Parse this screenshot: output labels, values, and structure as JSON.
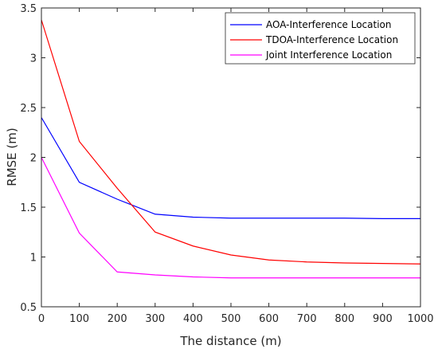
{
  "chart_data": {
    "type": "line",
    "xlabel": "The distance (m)",
    "ylabel": "RMSE (m)",
    "xlim": [
      0,
      1000
    ],
    "ylim": [
      0.5,
      3.5
    ],
    "xticks": [
      0,
      100,
      200,
      300,
      400,
      500,
      600,
      700,
      800,
      900,
      1000
    ],
    "yticks": [
      0.5,
      1,
      1.5,
      2,
      2.5,
      3,
      3.5
    ],
    "xtick_labels": [
      "0",
      "100",
      "200",
      "300",
      "400",
      "500",
      "600",
      "700",
      "800",
      "900",
      "1000"
    ],
    "ytick_labels": [
      "0.5",
      "1",
      "1.5",
      "2",
      "2.5",
      "3",
      "3.5"
    ],
    "grid": false,
    "legend_position": "top-right",
    "x": [
      0,
      100,
      200,
      300,
      400,
      500,
      600,
      700,
      800,
      900,
      1000
    ],
    "series": [
      {
        "name": "AOA-Interference Location",
        "color": "#0000ff",
        "values": [
          2.4,
          1.75,
          1.58,
          1.43,
          1.4,
          1.39,
          1.39,
          1.39,
          1.39,
          1.385,
          1.385
        ]
      },
      {
        "name": "TDOA-Interference Location",
        "color": "#ff0000",
        "values": [
          3.38,
          2.16,
          1.69,
          1.25,
          1.11,
          1.02,
          0.97,
          0.95,
          0.94,
          0.935,
          0.93
        ]
      },
      {
        "name": "Joint Interference Location",
        "color": "#ff00ff",
        "values": [
          2.0,
          1.24,
          0.85,
          0.82,
          0.8,
          0.79,
          0.79,
          0.79,
          0.79,
          0.79,
          0.79
        ]
      }
    ]
  }
}
